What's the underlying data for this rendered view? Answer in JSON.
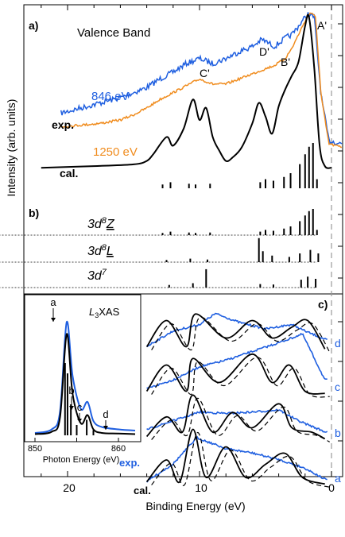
{
  "chart_data": [
    {
      "type": "line",
      "panel": "a)",
      "title": "Valence Band",
      "xlabel": "Binding Energy (eV)",
      "ylabel": "Intensity (arb. units)",
      "xlim": [
        23,
        -1
      ],
      "xticks": [
        20,
        10,
        0
      ],
      "series": [
        {
          "name": "846 eV",
          "color": "#1f5fe0",
          "x": [
            20.5,
            19,
            17.5,
            16,
            15,
            14,
            13,
            12,
            11,
            10,
            9,
            8,
            7,
            6,
            5.3,
            5,
            4.3,
            3.5,
            3,
            2.5,
            2,
            1.8,
            1.3,
            0.8,
            0.2,
            -0.8
          ],
          "y": [
            0.44,
            0.47,
            0.5,
            0.53,
            0.56,
            0.59,
            0.64,
            0.68,
            0.73,
            0.76,
            0.73,
            0.76,
            0.8,
            0.83,
            0.87,
            0.86,
            0.83,
            0.88,
            0.9,
            0.95,
            1.0,
            1.02,
            1.0,
            0.55,
            0.28,
            0.26
          ]
        },
        {
          "name": "1250 eV",
          "color": "#f08c1e",
          "x": [
            20.5,
            19,
            17.5,
            16,
            15,
            14,
            13,
            12,
            11,
            10,
            9,
            8,
            7,
            6,
            5,
            4.3,
            3.5,
            3,
            2.5,
            2,
            1.6,
            1.2,
            0.8,
            0.2,
            -0.8
          ],
          "y": [
            0.36,
            0.37,
            0.38,
            0.4,
            0.43,
            0.47,
            0.52,
            0.56,
            0.6,
            0.64,
            0.61,
            0.61,
            0.64,
            0.67,
            0.7,
            0.72,
            0.76,
            0.82,
            0.9,
            0.98,
            1.03,
            1.0,
            0.55,
            0.26,
            0.24
          ]
        },
        {
          "name": "cal.",
          "color": "#000000",
          "x": [
            22,
            18,
            15,
            14,
            13.5,
            12.5,
            12,
            11.2,
            10.5,
            10,
            9.5,
            9,
            8.5,
            8,
            7.5,
            6.8,
            6,
            5.5,
            5,
            4.5,
            4,
            3.5,
            3,
            2.5,
            2,
            1.7,
            1.3,
            0.9,
            0.5,
            0
          ],
          "y": [
            0.12,
            0.13,
            0.14,
            0.16,
            0.2,
            0.3,
            0.25,
            0.35,
            0.52,
            0.4,
            0.47,
            0.3,
            0.22,
            0.16,
            0.18,
            0.24,
            0.38,
            0.5,
            0.42,
            0.32,
            0.48,
            0.58,
            0.66,
            0.74,
            0.95,
            1.0,
            0.7,
            0.25,
            0.13,
            0.12
          ]
        }
      ],
      "annotations": [
        "A'",
        "B'",
        "C'",
        "D'"
      ],
      "labels": [
        "exp.",
        "cal."
      ]
    },
    {
      "type": "bar",
      "panel": "b)",
      "series_labels": [
        "3d8Z",
        "3d8L",
        "3d7"
      ],
      "series": [
        {
          "name": "3d8Z",
          "x": [
            12.8,
            12.2,
            10.8,
            10.3,
            9.2,
            5.4,
            5.0,
            4.4,
            3.6,
            3.1,
            2.4,
            2.0,
            1.7,
            1.4,
            1.1
          ],
          "values": [
            0.05,
            0.08,
            0.06,
            0.05,
            0.06,
            0.08,
            0.12,
            0.1,
            0.15,
            0.2,
            0.32,
            0.45,
            0.55,
            0.6,
            0.12
          ]
        },
        {
          "name": "3d8L",
          "x": [
            12.5,
            10.7,
            9.4,
            5.5,
            5.2,
            4.5,
            3.2,
            2.4,
            1.6,
            1.0
          ],
          "values": [
            0.05,
            0.08,
            0.06,
            0.55,
            0.25,
            0.15,
            0.12,
            0.2,
            0.28,
            0.2
          ]
        },
        {
          "name": "3d7",
          "x": [
            12.3,
            10.5,
            9.5,
            5.4,
            4.4,
            2.3,
            1.8,
            1.2
          ],
          "values": [
            0.06,
            0.1,
            0.42,
            0.08,
            0.07,
            0.18,
            0.25,
            0.2
          ]
        }
      ]
    },
    {
      "type": "line",
      "panel": "c)",
      "labels": [
        "exp.",
        "cal."
      ],
      "curve_labels": [
        "a",
        "b",
        "c",
        "d"
      ]
    },
    {
      "type": "line",
      "panel": "inset",
      "title": "L3XAS",
      "xlabel": "Photon Energy (eV)",
      "xlim": [
        850,
        862
      ],
      "xticks": [
        850,
        860
      ],
      "markers": [
        "a",
        "b",
        "c",
        "d"
      ]
    }
  ],
  "text": {
    "panel_a": "a)",
    "panel_b": "b)",
    "panel_c": "c)",
    "valence_band": "Valence Band",
    "ylabel": "Intensity (arb. units)",
    "xlabel": "Binding Energy (eV)",
    "x20": "20",
    "x10": "10",
    "x0": "0",
    "e846": "846 eV",
    "e1250": "1250 eV",
    "exp": "exp.",
    "cal": "cal.",
    "A": "A'",
    "B": "B'",
    "C": "C'",
    "D": "D'",
    "z_main": "3d",
    "z_sup": "8",
    "z_letter": "Z",
    "l_main": "3d",
    "l_sup": "8",
    "l_letter": "L",
    "d7_main": "3d",
    "d7_sup": "7",
    "c_a": "a",
    "c_b": "b",
    "c_c": "c",
    "c_d": "d",
    "inset_L": "L",
    "inset_sub": "3",
    "inset_xas": "XAS",
    "inset_xlabel": "Photon Energy (eV)",
    "inset_850": "850",
    "inset_860": "860",
    "m_a": "a",
    "m_b": "b",
    "m_c": "c",
    "m_d": "d"
  },
  "colors": {
    "blue": "#1f5fe0",
    "orange": "#f08c1e",
    "black": "#000000"
  }
}
